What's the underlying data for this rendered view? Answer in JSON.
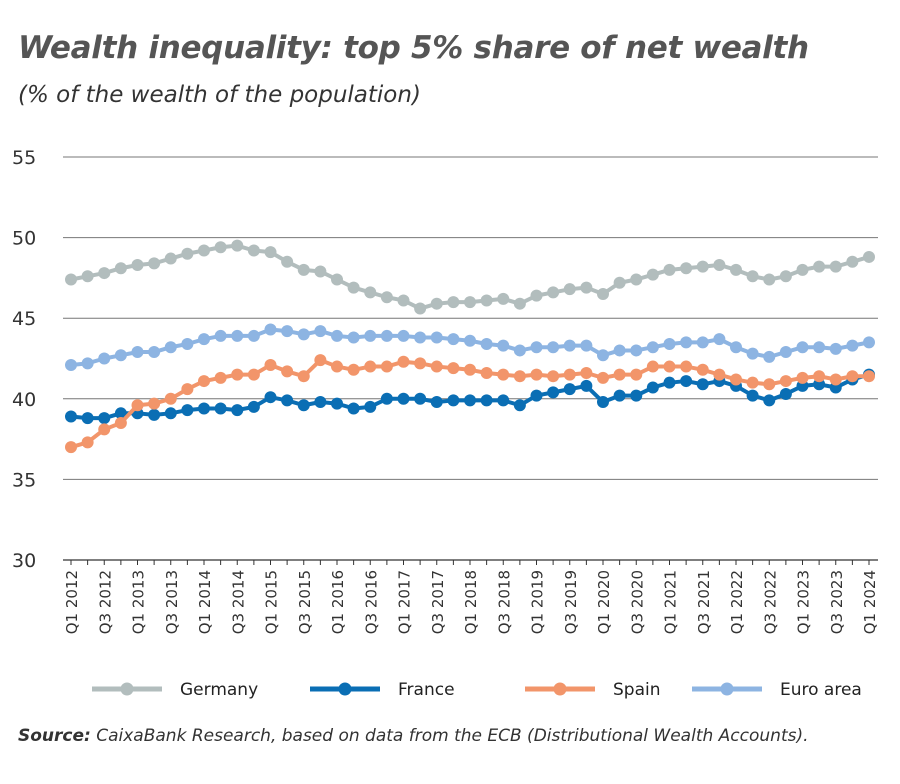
{
  "title": "Wealth inequality: top 5% share of net wealth",
  "subtitle": "(% of the wealth of the population)",
  "source_label": "Source:",
  "source_text": " CaixaBank Research, based on data from the ECB (Distributional Wealth Accounts).",
  "chart_data": {
    "type": "line",
    "ylim": [
      30,
      55
    ],
    "yticks": [
      30,
      35,
      40,
      45,
      50,
      55
    ],
    "grid": true,
    "legend_position": "bottom",
    "x": [
      "Q1 2012",
      "Q2 2012",
      "Q3 2012",
      "Q4 2012",
      "Q1 2013",
      "Q2 2013",
      "Q3 2013",
      "Q4 2013",
      "Q1 2014",
      "Q2 2014",
      "Q3 2014",
      "Q4 2014",
      "Q1 2015",
      "Q2 2015",
      "Q3 2015",
      "Q4 2015",
      "Q1 2016",
      "Q2 2016",
      "Q3 2016",
      "Q4 2016",
      "Q1 2017",
      "Q2 2017",
      "Q3 2017",
      "Q4 2017",
      "Q1 2018",
      "Q2 2018",
      "Q3 2018",
      "Q4 2018",
      "Q1 2019",
      "Q2 2019",
      "Q3 2019",
      "Q4 2019",
      "Q1 2020",
      "Q2 2020",
      "Q3 2020",
      "Q4 2020",
      "Q1 2021",
      "Q2 2021",
      "Q3 2021",
      "Q4 2021",
      "Q1 2022",
      "Q2 2022",
      "Q3 2022",
      "Q4 2022",
      "Q1 2023",
      "Q2 2023",
      "Q3 2023",
      "Q4 2023",
      "Q1 2024"
    ],
    "xtick_labels": [
      "Q1 2012",
      "Q3 2012",
      "Q1 2013",
      "Q3 2013",
      "Q1 2014",
      "Q3 2014",
      "Q1 2015",
      "Q3 2015",
      "Q1 2016",
      "Q3 2016",
      "Q1 2017",
      "Q3 2017",
      "Q1 2018",
      "Q3 2018",
      "Q1 2019",
      "Q3 2019",
      "Q1 2020",
      "Q3 2020",
      "Q1 2021",
      "Q3 2021",
      "Q1 2022",
      "Q3 2022",
      "Q1 2023",
      "Q3 2023",
      "Q1 2024"
    ],
    "series": [
      {
        "name": "Germany",
        "color": "#b2bdbd",
        "values": [
          47.4,
          47.6,
          47.8,
          48.1,
          48.3,
          48.4,
          48.7,
          49.0,
          49.2,
          49.4,
          49.5,
          49.2,
          49.1,
          48.5,
          48.0,
          47.9,
          47.4,
          46.9,
          46.6,
          46.3,
          46.1,
          45.6,
          45.9,
          46.0,
          46.0,
          46.1,
          46.2,
          45.9,
          46.4,
          46.6,
          46.8,
          46.9,
          46.5,
          47.2,
          47.4,
          47.7,
          48.0,
          48.1,
          48.2,
          48.3,
          48.0,
          47.6,
          47.4,
          47.6,
          48.0,
          48.2,
          48.2,
          48.5,
          48.8
        ]
      },
      {
        "name": "France",
        "color": "#0a6eb4",
        "values": [
          38.9,
          38.8,
          38.8,
          39.1,
          39.1,
          39.0,
          39.1,
          39.3,
          39.4,
          39.4,
          39.3,
          39.5,
          40.1,
          39.9,
          39.6,
          39.8,
          39.7,
          39.4,
          39.5,
          40.0,
          40.0,
          40.0,
          39.8,
          39.9,
          39.9,
          39.9,
          39.9,
          39.6,
          40.2,
          40.4,
          40.6,
          40.8,
          39.8,
          40.2,
          40.2,
          40.7,
          41.0,
          41.1,
          40.9,
          41.1,
          40.8,
          40.2,
          39.9,
          40.3,
          40.8,
          40.9,
          40.7,
          41.2,
          41.5
        ]
      },
      {
        "name": "Spain",
        "color": "#f2956a",
        "values": [
          37.0,
          37.3,
          38.1,
          38.5,
          39.6,
          39.7,
          40.0,
          40.6,
          41.1,
          41.3,
          41.5,
          41.5,
          42.1,
          41.7,
          41.4,
          42.4,
          42.0,
          41.8,
          42.0,
          42.0,
          42.3,
          42.2,
          42.0,
          41.9,
          41.8,
          41.6,
          41.5,
          41.4,
          41.5,
          41.4,
          41.5,
          41.6,
          41.3,
          41.5,
          41.5,
          42.0,
          42.0,
          42.0,
          41.8,
          41.5,
          41.2,
          41.0,
          40.9,
          41.1,
          41.3,
          41.4,
          41.2,
          41.4,
          41.4
        ]
      },
      {
        "name": "Euro area",
        "color": "#8db4e2",
        "values": [
          42.1,
          42.2,
          42.5,
          42.7,
          42.9,
          42.9,
          43.2,
          43.4,
          43.7,
          43.9,
          43.9,
          43.9,
          44.3,
          44.2,
          44.0,
          44.2,
          43.9,
          43.8,
          43.9,
          43.9,
          43.9,
          43.8,
          43.8,
          43.7,
          43.6,
          43.4,
          43.3,
          43.0,
          43.2,
          43.2,
          43.3,
          43.3,
          42.7,
          43.0,
          43.0,
          43.2,
          43.4,
          43.5,
          43.5,
          43.7,
          43.2,
          42.8,
          42.6,
          42.9,
          43.2,
          43.2,
          43.1,
          43.3,
          43.5
        ]
      }
    ]
  }
}
